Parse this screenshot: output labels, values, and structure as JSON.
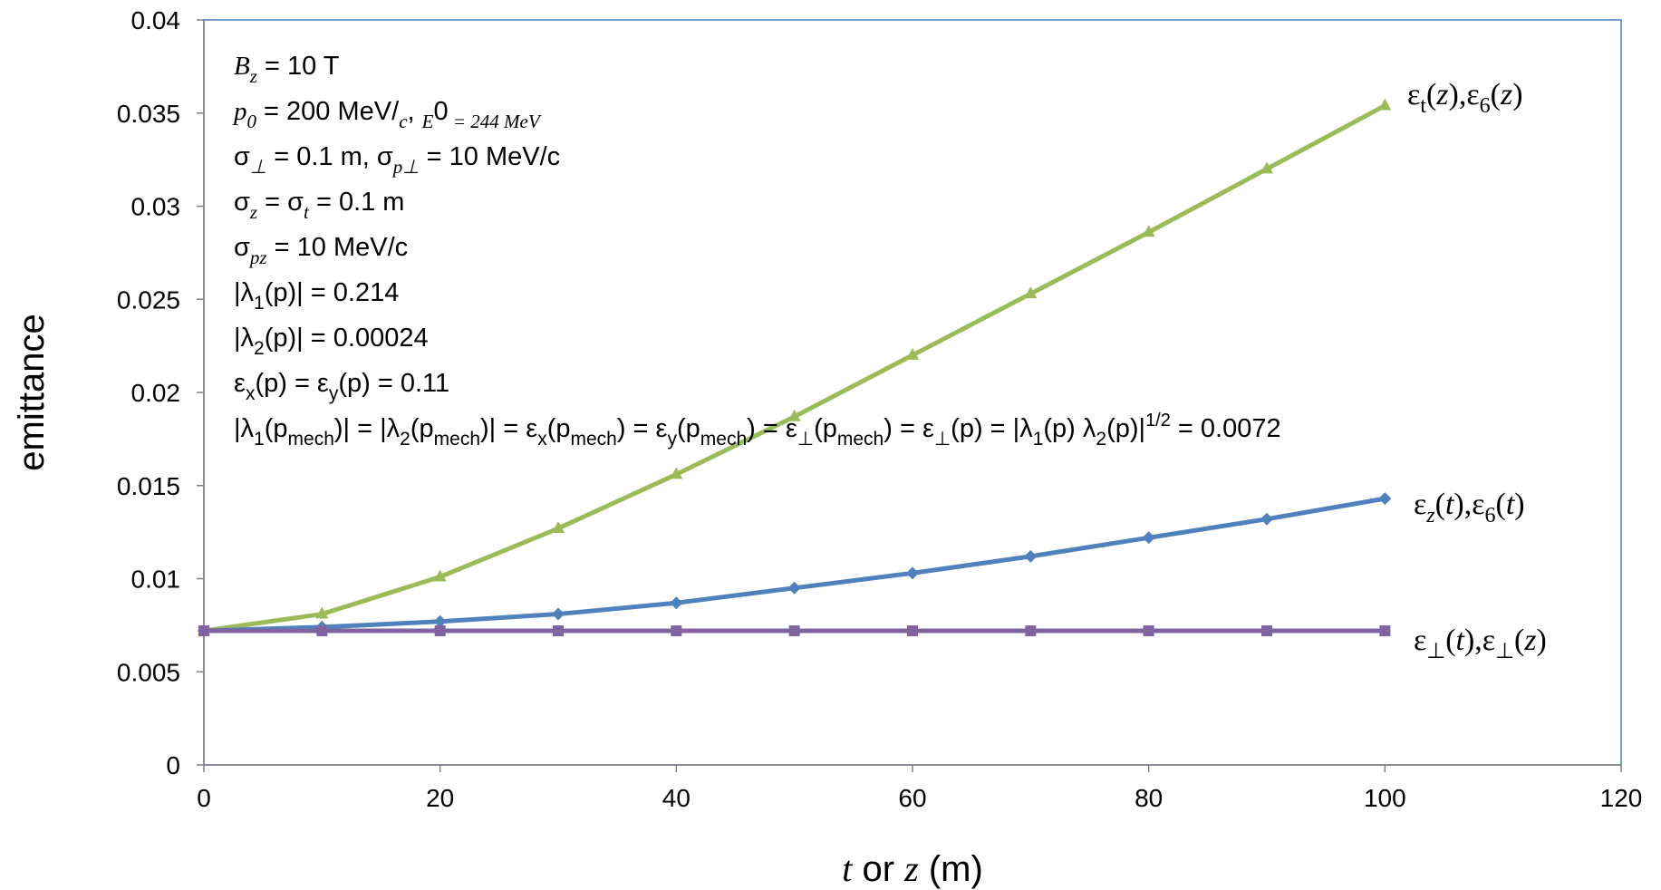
{
  "chart_data": {
    "type": "line",
    "xlabel_parts": [
      "t",
      " or ",
      "z",
      " (m)"
    ],
    "ylabel": "emittance",
    "xlim": [
      0,
      120
    ],
    "ylim": [
      0,
      0.04
    ],
    "xticks": [
      "0",
      "20",
      "40",
      "60",
      "80",
      "100",
      "120"
    ],
    "yticks": [
      "0",
      "0.005",
      "0.01",
      "0.015",
      "0.02",
      "0.025",
      "0.03",
      "0.035",
      "0.04"
    ],
    "grid": false,
    "x": [
      0,
      10,
      20,
      30,
      40,
      50,
      60,
      70,
      80,
      90,
      100
    ],
    "series": [
      {
        "label_parts": [
          "ε",
          "t",
          "(",
          "z",
          "),ε",
          "6",
          "(",
          "z",
          ")"
        ],
        "color": "#9BBB59",
        "marker": "triangle",
        "values": [
          0.0072,
          0.0081,
          0.0101,
          0.0127,
          0.0156,
          0.0187,
          0.022,
          0.0253,
          0.0286,
          0.032,
          0.0354
        ]
      },
      {
        "label_parts": [
          "ε",
          "z",
          "(",
          "t",
          "),ε",
          "6",
          "(",
          "t",
          ")"
        ],
        "color": "#4F81BD",
        "marker": "diamond",
        "values": [
          0.0072,
          0.0074,
          0.0077,
          0.0081,
          0.0087,
          0.0095,
          0.0103,
          0.0112,
          0.0122,
          0.0132,
          0.0143
        ]
      },
      {
        "label_parts": [
          "ε",
          "⊥",
          "(",
          "t",
          "),ε",
          "⊥",
          "(",
          "z",
          ")"
        ],
        "color": "#8064A2",
        "marker": "square",
        "values": [
          0.0072,
          0.0072,
          0.0072,
          0.0072,
          0.0072,
          0.0072,
          0.0072,
          0.0072,
          0.0072,
          0.0072,
          0.0072
        ]
      }
    ],
    "annotations": [
      [
        "B",
        "z",
        " = 10 T"
      ],
      [
        "p",
        "0",
        " = 200 MeV/",
        "c",
        ", ",
        "E",
        "0",
        " = 244 MeV"
      ],
      [
        "σ",
        "⊥",
        " = 0.1 m, σ",
        "p⊥",
        " = 10 MeV/c"
      ],
      [
        "σ",
        "z",
        " = σ",
        "t",
        " = 0.1 m"
      ],
      [
        "σ",
        "pz",
        " = 10 MeV/c"
      ],
      [
        "|λ",
        "1",
        "(p)| = 0.214"
      ],
      [
        "|λ",
        "2",
        "(p)| = 0.00024"
      ],
      [
        "ε",
        "x",
        "(p) = ε",
        "y",
        "(p) = 0.11"
      ],
      [
        "|λ",
        "1",
        "(p",
        "mech",
        ")| = |λ",
        "2",
        "(p",
        "mech",
        ")| = ε",
        "x",
        "(p",
        "mech",
        ") = ε",
        "y",
        "(p",
        "mech",
        ") = ε",
        "⊥",
        "(p",
        "mech",
        ") = ε",
        "⊥",
        "(p) = |λ",
        "1",
        "(p) λ",
        "2",
        "(p)|",
        "1/2",
        "  = 0.0072"
      ]
    ]
  }
}
